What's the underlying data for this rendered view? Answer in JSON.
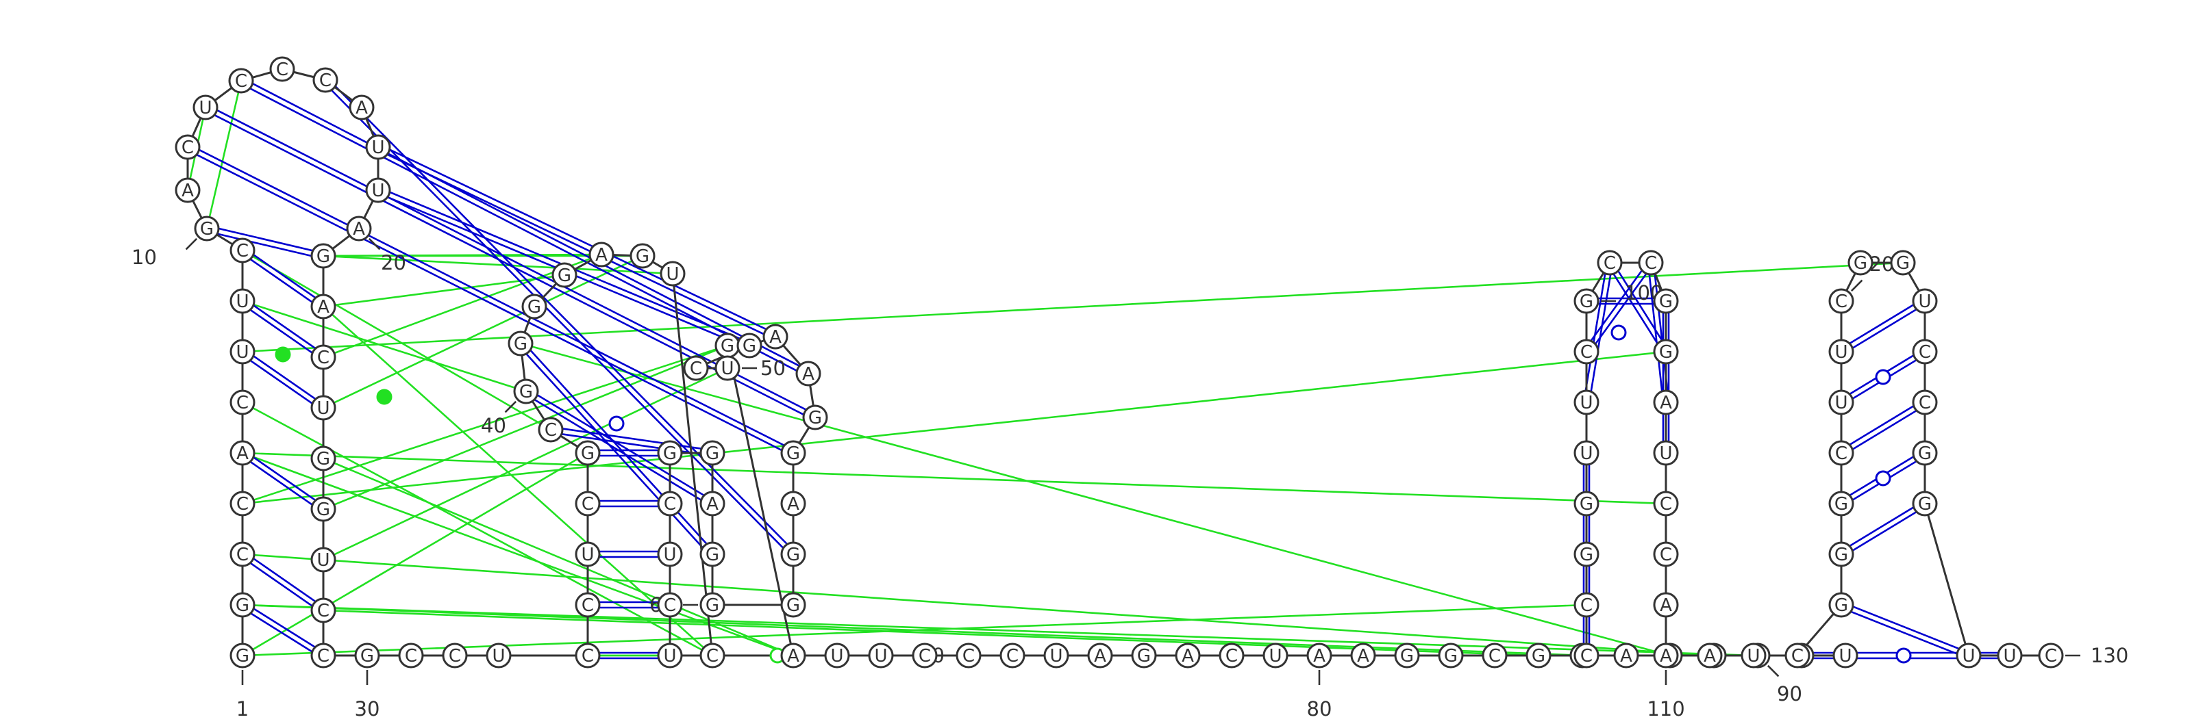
{
  "colors": {
    "background": "#ffffff",
    "backbone": "#333333",
    "canonical_pair": "#0000d0",
    "noncanonical_pair": "#22e022"
  },
  "nucleotides": [
    {
      "i": 1,
      "b": "G"
    },
    {
      "i": 2,
      "b": "G"
    },
    {
      "i": 3,
      "b": "C"
    },
    {
      "i": 4,
      "b": "C"
    },
    {
      "i": 5,
      "b": "A"
    },
    {
      "i": 6,
      "b": "C"
    },
    {
      "i": 7,
      "b": "U"
    },
    {
      "i": 8,
      "b": "U"
    },
    {
      "i": 9,
      "b": "C"
    },
    {
      "i": 10,
      "b": "G"
    },
    {
      "i": 11,
      "b": "A"
    },
    {
      "i": 12,
      "b": "C"
    },
    {
      "i": 13,
      "b": "U"
    },
    {
      "i": 14,
      "b": "C"
    },
    {
      "i": 15,
      "b": "C"
    },
    {
      "i": 16,
      "b": "C"
    },
    {
      "i": 17,
      "b": "A"
    },
    {
      "i": 18,
      "b": "U"
    },
    {
      "i": 19,
      "b": "U"
    },
    {
      "i": 20,
      "b": "A"
    },
    {
      "i": 21,
      "b": "G"
    },
    {
      "i": 22,
      "b": "A"
    },
    {
      "i": 23,
      "b": "C"
    },
    {
      "i": 24,
      "b": "U"
    },
    {
      "i": 25,
      "b": "G"
    },
    {
      "i": 26,
      "b": "G"
    },
    {
      "i": 27,
      "b": "U"
    },
    {
      "i": 28,
      "b": "C"
    },
    {
      "i": 29,
      "b": "C"
    },
    {
      "i": 30,
      "b": "G"
    },
    {
      "i": 31,
      "b": "C"
    },
    {
      "i": 32,
      "b": "C"
    },
    {
      "i": 33,
      "b": "U"
    },
    {
      "i": 34,
      "b": "C"
    },
    {
      "i": 35,
      "b": "C"
    },
    {
      "i": 36,
      "b": "U"
    },
    {
      "i": 37,
      "b": "C"
    },
    {
      "i": 38,
      "b": "G"
    },
    {
      "i": 39,
      "b": "C"
    },
    {
      "i": 40,
      "b": "G"
    },
    {
      "i": 41,
      "b": "G"
    },
    {
      "i": 42,
      "b": "G"
    },
    {
      "i": 43,
      "b": "G"
    },
    {
      "i": 44,
      "b": "A"
    },
    {
      "i": 45,
      "b": "G"
    },
    {
      "i": 46,
      "b": "U"
    },
    {
      "i": 47,
      "b": "C"
    },
    {
      "i": 48,
      "b": "A"
    },
    {
      "i": 49,
      "b": "G"
    },
    {
      "i": 50,
      "b": "U"
    },
    {
      "i": 51,
      "b": "C"
    },
    {
      "i": 52,
      "b": "G"
    },
    {
      "i": 53,
      "b": "A"
    },
    {
      "i": 54,
      "b": "A"
    },
    {
      "i": 55,
      "b": "G"
    },
    {
      "i": 56,
      "b": "G"
    },
    {
      "i": 57,
      "b": "A"
    },
    {
      "i": 58,
      "b": "G"
    },
    {
      "i": 59,
      "b": "G"
    },
    {
      "i": 60,
      "b": "G"
    },
    {
      "i": 61,
      "b": "G"
    },
    {
      "i": 62,
      "b": "A"
    },
    {
      "i": 63,
      "b": "G"
    },
    {
      "i": 64,
      "b": "G"
    },
    {
      "i": 65,
      "b": "C"
    },
    {
      "i": 66,
      "b": "U"
    },
    {
      "i": 67,
      "b": "C"
    },
    {
      "i": 68,
      "b": "U"
    },
    {
      "i": 69,
      "b": "U"
    },
    {
      "i": 70,
      "b": "U"
    },
    {
      "i": 71,
      "b": "C"
    },
    {
      "i": 72,
      "b": "C"
    },
    {
      "i": 73,
      "b": "C"
    },
    {
      "i": 74,
      "b": "U"
    },
    {
      "i": 75,
      "b": "A"
    },
    {
      "i": 76,
      "b": "G"
    },
    {
      "i": 77,
      "b": "A"
    },
    {
      "i": 78,
      "b": "C"
    },
    {
      "i": 79,
      "b": "U"
    },
    {
      "i": 80,
      "b": "A"
    },
    {
      "i": 81,
      "b": "A"
    },
    {
      "i": 82,
      "b": "G"
    },
    {
      "i": 83,
      "b": "G"
    },
    {
      "i": 84,
      "b": "C"
    },
    {
      "i": 85,
      "b": "G"
    },
    {
      "i": 86,
      "b": "C"
    },
    {
      "i": 87,
      "b": "A"
    },
    {
      "i": 88,
      "b": "U"
    },
    {
      "i": 89,
      "b": "C"
    },
    {
      "i": 90,
      "b": "G"
    },
    {
      "i": 91,
      "b": "A"
    },
    {
      "i": 92,
      "b": "U"
    },
    {
      "i": 93,
      "b": "C"
    },
    {
      "i": 94,
      "b": "C"
    },
    {
      "i": 95,
      "b": "G"
    },
    {
      "i": 96,
      "b": "G"
    },
    {
      "i": 97,
      "b": "U"
    },
    {
      "i": 98,
      "b": "U"
    },
    {
      "i": 99,
      "b": "C"
    },
    {
      "i": 100,
      "b": "G"
    },
    {
      "i": 101,
      "b": "C"
    },
    {
      "i": 102,
      "b": "C"
    },
    {
      "i": 103,
      "b": "G"
    },
    {
      "i": 104,
      "b": "G"
    },
    {
      "i": 105,
      "b": "A"
    },
    {
      "i": 106,
      "b": "U"
    },
    {
      "i": 107,
      "b": "C"
    },
    {
      "i": 108,
      "b": "C"
    },
    {
      "i": 109,
      "b": "A"
    },
    {
      "i": 110,
      "b": "A"
    },
    {
      "i": 111,
      "b": "A"
    },
    {
      "i": 112,
      "b": "U"
    },
    {
      "i": 113,
      "b": "C"
    },
    {
      "i": 114,
      "b": "G"
    },
    {
      "i": 115,
      "b": "G"
    },
    {
      "i": 116,
      "b": "G"
    },
    {
      "i": 117,
      "b": "C"
    },
    {
      "i": 118,
      "b": "U"
    },
    {
      "i": 119,
      "b": "U"
    },
    {
      "i": 120,
      "b": "C"
    },
    {
      "i": 121,
      "b": "G"
    },
    {
      "i": 122,
      "b": "G"
    },
    {
      "i": 123,
      "b": "U"
    },
    {
      "i": 124,
      "b": "C"
    },
    {
      "i": 125,
      "b": "C"
    },
    {
      "i": 126,
      "b": "G"
    },
    {
      "i": 127,
      "b": "G"
    },
    {
      "i": 128,
      "b": "U"
    },
    {
      "i": 129,
      "b": "U"
    },
    {
      "i": 130,
      "b": "C"
    }
  ],
  "numbering": [
    {
      "n": "1",
      "at": 1
    },
    {
      "n": "10",
      "at": 10
    },
    {
      "n": "20",
      "at": 20
    },
    {
      "n": "30",
      "at": 30
    },
    {
      "n": "40",
      "at": 40
    },
    {
      "n": "50",
      "at": 50
    },
    {
      "n": "60",
      "at": 60
    },
    {
      "n": "70",
      "at": 70
    },
    {
      "n": "80",
      "at": 80
    },
    {
      "n": "90",
      "at": 90
    },
    {
      "n": "100",
      "at": 100
    },
    {
      "n": "110",
      "at": 110
    },
    {
      "n": "120",
      "at": 120
    },
    {
      "n": "130",
      "at": 130
    }
  ],
  "canonical_pairs": [
    [
      2,
      29
    ],
    [
      3,
      28
    ],
    [
      5,
      26
    ],
    [
      7,
      24
    ],
    [
      8,
      23
    ],
    [
      9,
      22
    ],
    [
      10,
      21
    ],
    [
      12,
      56
    ],
    [
      13,
      55
    ],
    [
      14,
      54
    ],
    [
      16,
      58
    ],
    [
      18,
      53
    ],
    [
      19,
      52
    ],
    [
      34,
      68
    ],
    [
      35,
      67
    ],
    [
      36,
      66
    ],
    [
      37,
      65
    ],
    [
      38,
      64
    ],
    [
      39,
      63
    ],
    [
      40,
      62
    ],
    [
      41,
      61
    ],
    [
      93,
      97
    ],
    [
      98,
      101
    ],
    [
      99,
      102
    ],
    [
      100,
      103
    ],
    [
      101,
      104
    ],
    [
      102,
      105
    ],
    [
      103,
      106
    ],
    [
      113,
      129
    ],
    [
      114,
      128
    ],
    [
      115,
      127
    ],
    [
      116,
      126
    ],
    [
      117,
      125
    ],
    [
      118,
      124
    ],
    [
      119,
      123
    ]
  ],
  "wobble_pairs": [
    [
      41,
      62
    ],
    [
      98,
      102
    ],
    [
      118,
      124
    ],
    [
      116,
      126
    ],
    [
      113,
      129
    ]
  ],
  "noncanonical_pairs": [
    [
      1,
      38
    ],
    [
      1,
      94
    ],
    [
      2,
      93
    ],
    [
      2,
      112
    ],
    [
      3,
      111
    ],
    [
      4,
      104
    ],
    [
      4,
      49
    ],
    [
      5,
      48
    ],
    [
      5,
      107
    ],
    [
      6,
      47
    ],
    [
      7,
      122
    ],
    [
      8,
      40
    ],
    [
      9,
      39
    ],
    [
      10,
      14
    ],
    [
      11,
      13
    ],
    [
      21,
      46
    ],
    [
      21,
      45
    ],
    [
      21,
      44
    ],
    [
      22,
      47
    ],
    [
      22,
      43
    ],
    [
      23,
      44
    ],
    [
      24,
      45
    ],
    [
      25,
      48
    ],
    [
      26,
      49
    ],
    [
      27,
      50
    ],
    [
      28,
      85
    ],
    [
      29,
      86
    ],
    [
      30,
      87
    ],
    [
      41,
      88
    ]
  ],
  "noncanonical_markers": [
    {
      "between": [
        7,
        23
      ],
      "style": "filled"
    },
    {
      "between": [
        40,
        6
      ],
      "style": "filled"
    },
    {
      "between": [
        78,
        29
      ],
      "style": "open"
    }
  ]
}
